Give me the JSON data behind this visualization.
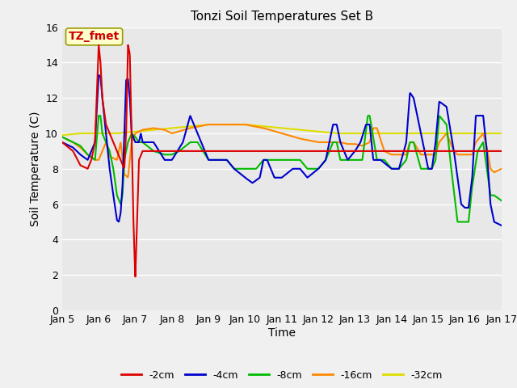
{
  "title": "Tonzi Soil Temperatures Set B",
  "xlabel": "Time",
  "ylabel": "Soil Temperature (C)",
  "annotation_text": "TZ_fmet",
  "annotation_color": "#cc0000",
  "annotation_bg": "#ffffcc",
  "annotation_border": "#999900",
  "ylim": [
    0,
    16
  ],
  "xlim": [
    0,
    12
  ],
  "xtick_labels": [
    "Jan 5",
    "Jan 6",
    "Jan 7",
    "Jan 8",
    "Jan 9",
    "Jan 10",
    "Jan 11",
    "Jan 12",
    "Jan 13",
    "Jan 14",
    "Jan 15",
    "Jan 16",
    "Jan 17"
  ],
  "legend_labels": [
    "-2cm",
    "-4cm",
    "-8cm",
    "-16cm",
    "-32cm"
  ],
  "legend_colors": [
    "#dd0000",
    "#0000cc",
    "#00bb00",
    "#ff8800",
    "#dddd00"
  ],
  "plot_bg": "#e8e8e8",
  "fig_bg": "#f0f0f0",
  "grid_color": "#ffffff",
  "line_width": 1.5,
  "title_fontsize": 11,
  "axis_fontsize": 9,
  "label_fontsize": 10
}
